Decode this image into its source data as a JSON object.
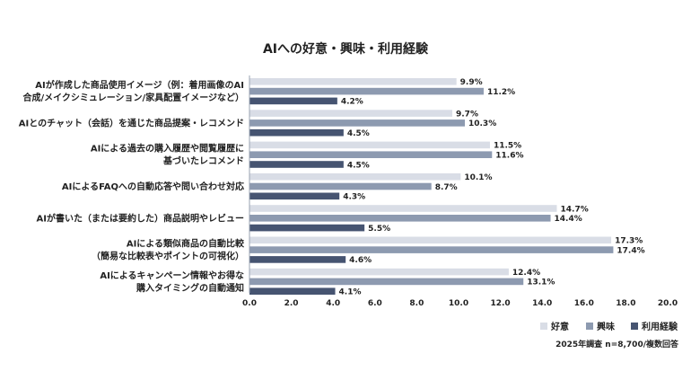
{
  "chart_data": {
    "type": "bar",
    "orientation": "horizontal",
    "title": "AIへの好意・興味・利用経験",
    "categories": [
      [
        "AIが作成した商品使用イメージ（例：着用画像のAI",
        "合成/メイクシミュレーション/家具配置イメージなど）"
      ],
      [
        "AIとのチャット（会話）を通じた商品提案・レコメンド"
      ],
      [
        "AIによる過去の購入履歴や閲覧履歴に",
        "基づいたレコメンド"
      ],
      [
        "AIによるFAQへの自動応答や問い合わせ対応"
      ],
      [
        "AIが書いた（または要約した）商品説明やレビュー"
      ],
      [
        "AIによる類似商品の自動比較",
        "（簡易な比較表やポイントの可視化）"
      ],
      [
        "AIによるキャンペーン情報やお得な",
        "購入タイミングの自動通知"
      ]
    ],
    "series": [
      {
        "name": "好意",
        "color": "#d9dde6",
        "values": [
          9.9,
          9.7,
          11.5,
          10.1,
          14.7,
          17.3,
          12.4
        ]
      },
      {
        "name": "興味",
        "color": "#8d9ab0",
        "values": [
          11.2,
          10.3,
          11.6,
          8.7,
          14.4,
          17.4,
          13.1
        ]
      },
      {
        "name": "利用経験",
        "color": "#465471",
        "values": [
          4.2,
          4.5,
          4.5,
          4.3,
          5.5,
          4.6,
          4.1
        ]
      }
    ],
    "value_suffix": "%",
    "xlim": [
      0,
      20
    ],
    "xticks": [
      "0.0",
      "2.0",
      "4.0",
      "6.0",
      "8.0",
      "10.0",
      "12.0",
      "14.0",
      "16.0",
      "18.0",
      "20.0"
    ],
    "grid": false,
    "legend": "bottom-right",
    "note": "2025年調査 n=8,700/複数回答"
  }
}
